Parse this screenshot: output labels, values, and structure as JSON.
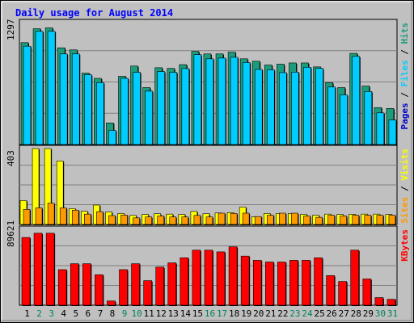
{
  "chart_data": [
    {
      "type": "bar",
      "title": "Daily usage for August 2014",
      "categories": [
        "1",
        "2",
        "3",
        "4",
        "5",
        "6",
        "7",
        "8",
        "9",
        "10",
        "11",
        "12",
        "13",
        "14",
        "15",
        "16",
        "17",
        "18",
        "19",
        "20",
        "21",
        "22",
        "23",
        "24",
        "25",
        "26",
        "27",
        "28",
        "29",
        "30",
        "31"
      ],
      "weekend_days": [
        "2",
        "3",
        "9",
        "10",
        "16",
        "17",
        "23",
        "24",
        "30",
        "31"
      ],
      "ymax_label": "1297",
      "ylim": [
        0,
        1297
      ],
      "legend": [
        "Pages",
        "Files",
        "Hits"
      ],
      "series": [
        {
          "name": "Hits",
          "color": "#1b9c7b",
          "values": [
            1084,
            1232,
            1241,
            1029,
            1007,
            760,
            704,
            230,
            726,
            835,
            606,
            817,
            810,
            850,
            990,
            964,
            964,
            983,
            912,
            886,
            846,
            855,
            868,
            868,
            826,
            658,
            606,
            970,
            622,
            393,
            384
          ]
        },
        {
          "name": "Files",
          "color": "#00ccff",
          "values": [
            1046,
            1204,
            1204,
            964,
            964,
            742,
            658,
            150,
            704,
            768,
            568,
            776,
            768,
            808,
            956,
            912,
            920,
            928,
            872,
            799,
            795,
            765,
            770,
            822,
            810,
            612,
            528,
            938,
            564,
            337,
            261
          ]
        },
        {
          "name": "Pages",
          "color": "#0000c8",
          "values": [
            0,
            0,
            0,
            0,
            0,
            0,
            0,
            0,
            0,
            0,
            0,
            0,
            0,
            0,
            0,
            0,
            0,
            0,
            0,
            0,
            0,
            0,
            0,
            0,
            0,
            0,
            0,
            0,
            0,
            0,
            0
          ]
        }
      ]
    },
    {
      "type": "bar",
      "categories": [
        "1",
        "2",
        "3",
        "4",
        "5",
        "6",
        "7",
        "8",
        "9",
        "10",
        "11",
        "12",
        "13",
        "14",
        "15",
        "16",
        "17",
        "18",
        "19",
        "20",
        "21",
        "22",
        "23",
        "24",
        "25",
        "26",
        "27",
        "28",
        "29",
        "30",
        "31"
      ],
      "ymax_label": "403",
      "ylim": [
        0,
        403
      ],
      "legend": [
        "Sites",
        "Visits"
      ],
      "series": [
        {
          "name": "Visits",
          "color": "#ffff00",
          "values": [
            127,
            403,
            403,
            337,
            84,
            70,
            103,
            66,
            58,
            48,
            53,
            57,
            55,
            53,
            69,
            57,
            61,
            63,
            92,
            40,
            58,
            58,
            58,
            54,
            49,
            55,
            53,
            54,
            55,
            55,
            53
          ]
        },
        {
          "name": "Sites",
          "color": "#ff9900",
          "values": [
            80,
            88,
            113,
            88,
            76,
            55,
            68,
            47,
            50,
            35,
            40,
            45,
            40,
            40,
            48,
            40,
            60,
            58,
            60,
            42,
            49,
            60,
            60,
            45,
            38,
            49,
            45,
            49,
            49,
            49,
            49
          ]
        }
      ]
    },
    {
      "type": "bar",
      "categories": [
        "1",
        "2",
        "3",
        "4",
        "5",
        "6",
        "7",
        "8",
        "9",
        "10",
        "11",
        "12",
        "13",
        "14",
        "15",
        "16",
        "17",
        "18",
        "19",
        "20",
        "21",
        "22",
        "23",
        "24",
        "25",
        "26",
        "27",
        "28",
        "29",
        "30",
        "31"
      ],
      "ymax_label": "89621",
      "ylim": [
        0,
        89621
      ],
      "legend": [
        "KBytes"
      ],
      "series": [
        {
          "name": "KBytes",
          "color": "#ff0000",
          "values": [
            80000,
            85000,
            85000,
            42000,
            49000,
            49000,
            36000,
            5000,
            42000,
            49000,
            29000,
            45000,
            50000,
            56000,
            65000,
            65000,
            63000,
            69000,
            58000,
            53000,
            51000,
            51000,
            53000,
            53000,
            56000,
            35000,
            28000,
            65000,
            31000,
            9000,
            7000
          ]
        }
      ]
    }
  ],
  "colors": {
    "background": "#ffffff",
    "frame": "#c0c0c0",
    "plot_bg": "#c0c0c0",
    "gridline": "#808080",
    "title": "#0000ff",
    "weekday_label": "#000000",
    "weekend_label": "#00805c"
  }
}
